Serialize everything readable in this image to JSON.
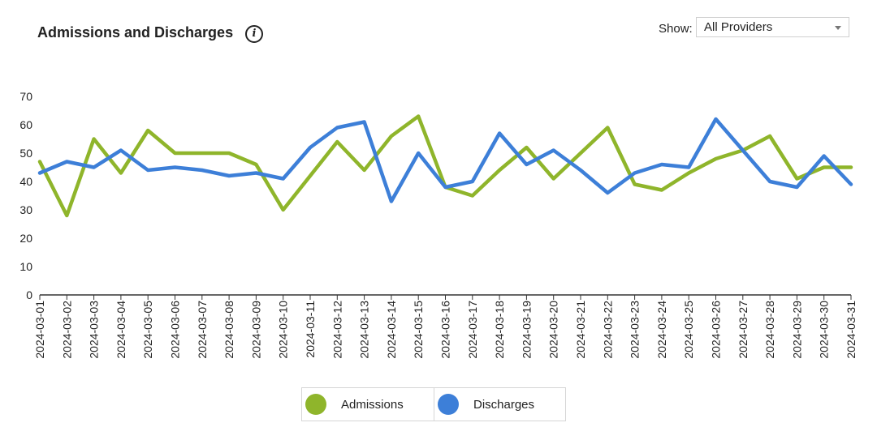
{
  "header": {
    "title": "Admissions and Discharges",
    "info_icon": "info-icon",
    "show_label": "Show:",
    "provider_select": {
      "value": "All Providers",
      "icon": "chevron-down-icon"
    }
  },
  "legend": [
    {
      "label": "Admissions",
      "color": "#8fb52b"
    },
    {
      "label": "Discharges",
      "color": "#3d7fd8"
    }
  ],
  "chart_data": {
    "type": "line",
    "title": "Admissions and Discharges",
    "xlabel": "",
    "ylabel": "",
    "ylim": [
      0,
      70
    ],
    "yticks": [
      0,
      10,
      20,
      30,
      40,
      50,
      60,
      70
    ],
    "grid": false,
    "legend_position": "bottom",
    "x": [
      "2024-03-01",
      "2024-03-02",
      "2024-03-03",
      "2024-03-04",
      "2024-03-05",
      "2024-03-06",
      "2024-03-07",
      "2024-03-08",
      "2024-03-09",
      "2024-03-10",
      "2024-03-11",
      "2024-03-12",
      "2024-03-13",
      "2024-03-14",
      "2024-03-15",
      "2024-03-16",
      "2024-03-17",
      "2024-03-18",
      "2024-03-19",
      "2024-03-20",
      "2024-03-21",
      "2024-03-22",
      "2024-03-23",
      "2024-03-24",
      "2024-03-25",
      "2024-03-26",
      "2024-03-27",
      "2024-03-28",
      "2024-03-29",
      "2024-03-30",
      "2024-03-31"
    ],
    "series": [
      {
        "name": "Admissions",
        "color": "#8fb52b",
        "values": [
          47,
          28,
          55,
          43,
          58,
          50,
          50,
          50,
          46,
          30,
          42,
          54,
          44,
          56,
          63,
          38,
          35,
          44,
          52,
          41,
          50,
          59,
          39,
          37,
          43,
          48,
          51,
          56,
          41,
          45,
          45
        ]
      },
      {
        "name": "Discharges",
        "color": "#3d7fd8",
        "values": [
          43,
          47,
          45,
          51,
          44,
          45,
          44,
          42,
          43,
          41,
          52,
          59,
          61,
          33,
          50,
          38,
          40,
          57,
          46,
          51,
          44,
          36,
          43,
          46,
          45,
          62,
          51,
          40,
          38,
          49,
          39
        ]
      }
    ]
  }
}
